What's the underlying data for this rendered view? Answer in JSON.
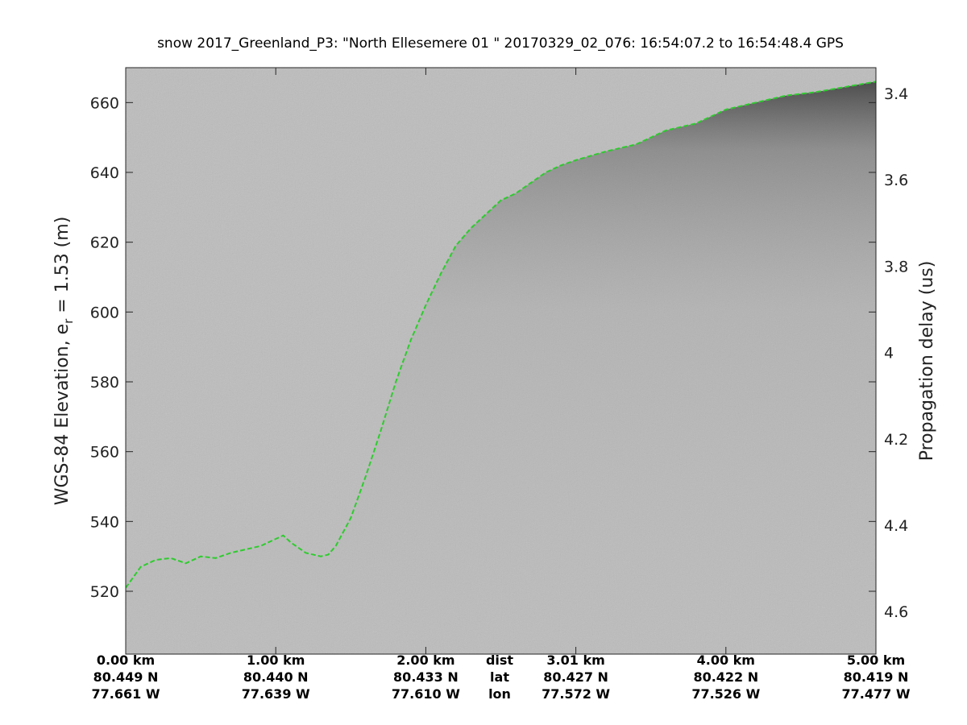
{
  "chart_data": {
    "type": "line",
    "title": "snow 2017_Greenland_P3: \"North Ellesemere 01 \"  20170329_02_076: 16:54:07.2 to 16:54:48.4 GPS",
    "ylabel": "WGS-84 Elevation, e",
    "ylabel_sub": "r",
    "ylabel_tail": " = 1.53 (m)",
    "y2label": "Propagation delay (us)",
    "xlim": [
      0,
      5
    ],
    "ylim": [
      502,
      670
    ],
    "y2lim": [
      3.3402,
      4.6986
    ],
    "yticks": [
      520,
      540,
      560,
      580,
      600,
      620,
      640,
      660
    ],
    "y2ticks": [
      3.4,
      3.6,
      3.8,
      4,
      4.2,
      4.4,
      4.6
    ],
    "xticks": [
      {
        "pos": 0,
        "dist": "0.00 km",
        "lat": "80.449 N",
        "lon": "77.661 W"
      },
      {
        "pos": 1,
        "dist": "1.00 km",
        "lat": "80.440 N",
        "lon": "77.639 W"
      },
      {
        "pos": 2,
        "dist": "2.00 km",
        "lat": "80.433 N",
        "lon": "77.610 W"
      },
      {
        "pos": 3,
        "dist": "3.01 km",
        "lat": "80.427 N",
        "lon": "77.572 W"
      },
      {
        "pos": 4,
        "dist": "4.00 km",
        "lat": "80.422 N",
        "lon": "77.526 W"
      },
      {
        "pos": 5,
        "dist": "5.00 km",
        "lat": "80.419 N",
        "lon": "77.477 W"
      }
    ],
    "row_labels": {
      "dist": "dist",
      "lat": "lat",
      "lon": "lon"
    },
    "grid": false,
    "background": "#bdbdbd",
    "series": [
      {
        "color": "#2ecc2e",
        "style": "dashed",
        "x": [
          0,
          0.05,
          0.1,
          0.2,
          0.3,
          0.4,
          0.5,
          0.6,
          0.7,
          0.8,
          0.9,
          1.0,
          1.05,
          1.1,
          1.2,
          1.3,
          1.35,
          1.4,
          1.5,
          1.6,
          1.7,
          1.8,
          1.9,
          2.0,
          2.1,
          2.2,
          2.3,
          2.4,
          2.5,
          2.6,
          2.7,
          2.8,
          2.9,
          3.0,
          3.2,
          3.4,
          3.6,
          3.8,
          4.0,
          4.2,
          4.4,
          4.6,
          4.8,
          5.0
        ],
        "y": [
          521,
          524,
          527,
          529,
          529.5,
          528,
          530,
          529.5,
          531,
          532,
          533,
          535,
          536,
          534,
          531,
          530,
          530.5,
          533,
          541,
          553,
          566,
          580,
          592,
          602,
          611,
          619,
          624,
          628,
          632,
          634,
          637,
          640,
          642,
          643.5,
          646,
          648,
          652,
          654,
          658,
          660,
          662,
          663,
          664.5,
          666
        ]
      }
    ]
  }
}
